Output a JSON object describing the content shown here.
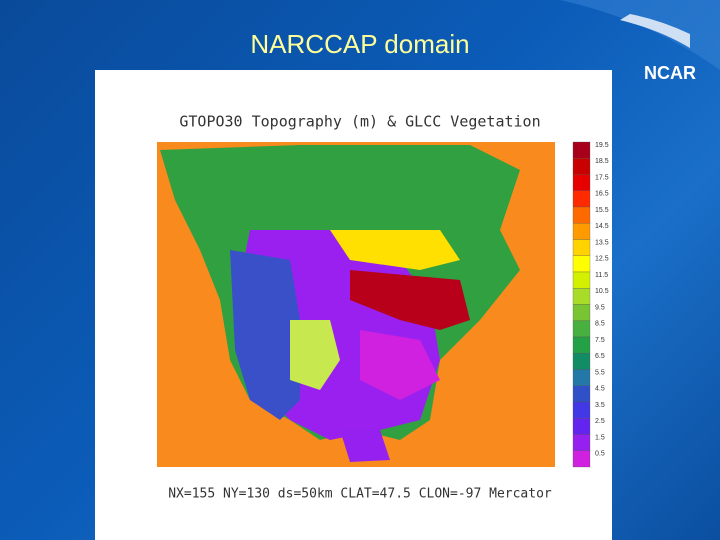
{
  "slide": {
    "title": "NARCCAP domain",
    "logo": "NCAR"
  },
  "figure": {
    "title": "GTOPO30 Topography (m) & GLCC Vegetation",
    "footer": "NX=155 NY=130 ds=50km CLAT=47.5 CLON=-97 Mercator",
    "colorbar": {
      "labels": [
        "19.5",
        "18.5",
        "17.5",
        "16.5",
        "15.5",
        "14.5",
        "13.5",
        "12.5",
        "11.5",
        "10.5",
        "9.5",
        "8.5",
        "7.5",
        "6.5",
        "5.5",
        "4.5",
        "3.5",
        "2.5",
        "1.5",
        "0.5"
      ],
      "colors": [
        "#a8001a",
        "#c80000",
        "#e60000",
        "#ff2a00",
        "#ff6a00",
        "#ff9a00",
        "#ffd200",
        "#ffff00",
        "#d2f000",
        "#a8dc28",
        "#78c432",
        "#48b040",
        "#24a046",
        "#128c64",
        "#2478a8",
        "#3050c8",
        "#4238e6",
        "#6424f0",
        "#9620f0",
        "#d020e0"
      ]
    }
  }
}
